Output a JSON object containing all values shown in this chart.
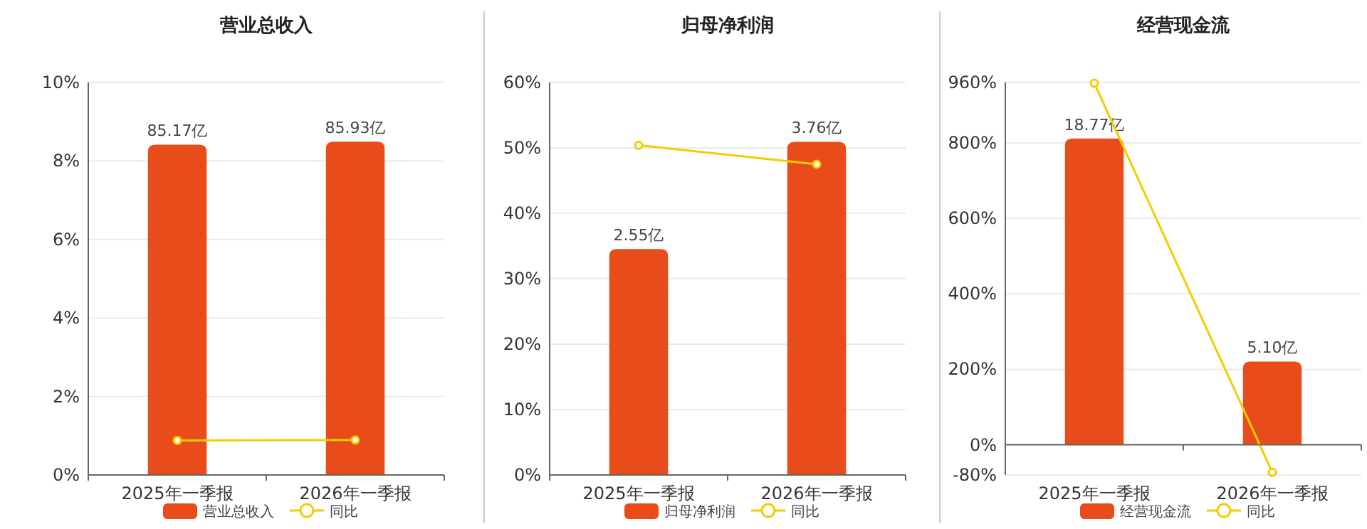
{
  "chart_data": [
    {
      "type": "bar",
      "title": "营业总收入",
      "categories": [
        "2025年一季报",
        "2026年一季报"
      ],
      "series": [
        {
          "name": "营业总收入",
          "axis": "y2",
          "color": "#e84c1a",
          "values": [
            85.17,
            85.93
          ],
          "value_labels": [
            "85.17亿",
            "85.93亿"
          ]
        },
        {
          "name": "同比",
          "type": "line",
          "color": "#f5cc00",
          "values": [
            0.88,
            0.89
          ]
        }
      ],
      "ylim": [
        0,
        10
      ],
      "yticks": [
        {
          "value": 0,
          "label": "0%"
        },
        {
          "value": 2,
          "label": "2%"
        },
        {
          "value": 4,
          "label": "4%"
        },
        {
          "value": 6,
          "label": "6%"
        },
        {
          "value": 8,
          "label": "8%"
        },
        {
          "value": 10,
          "label": "10%"
        }
      ],
      "y2lim": [
        0,
        101.2
      ],
      "tick_labels": "xy",
      "grid": "y",
      "legend": "bottom",
      "marker": "circle",
      "line_style": "solid"
    },
    {
      "type": "bar",
      "title": "归母净利润",
      "categories": [
        "2025年一季报",
        "2026年一季报"
      ],
      "series": [
        {
          "name": "归母净利润",
          "axis": "y2",
          "color": "#e84c1a",
          "values": [
            2.55,
            3.76
          ],
          "value_labels": [
            "2.55亿",
            "3.76亿"
          ]
        },
        {
          "name": "同比",
          "type": "line",
          "color": "#f5cc00",
          "values": [
            50.4,
            47.5
          ]
        }
      ],
      "ylim": [
        0,
        60
      ],
      "yticks": [
        {
          "value": 0,
          "label": "0%"
        },
        {
          "value": 10,
          "label": "10%"
        },
        {
          "value": 20,
          "label": "20%"
        },
        {
          "value": 30,
          "label": "30%"
        },
        {
          "value": 40,
          "label": "40%"
        },
        {
          "value": 50,
          "label": "50%"
        },
        {
          "value": 60,
          "label": "60%"
        }
      ],
      "y2lim": [
        0,
        4.43
      ],
      "tick_labels": "xy",
      "grid": "y",
      "legend": "bottom",
      "marker": "circle",
      "line_style": "solid"
    },
    {
      "type": "bar",
      "title": "经营现金流",
      "categories": [
        "2025年一季报",
        "2026年一季报"
      ],
      "series": [
        {
          "name": "经营现金流",
          "axis": "y2",
          "color": "#e84c1a",
          "values": [
            18.77,
            5.1
          ],
          "value_labels": [
            "18.77亿",
            "5.10亿"
          ]
        },
        {
          "name": "同比",
          "type": "line",
          "color": "#f5cc00",
          "values": [
            958,
            -73
          ]
        }
      ],
      "ylim": [
        -80,
        960
      ],
      "yticks": [
        {
          "value": -80,
          "label": "-80%"
        },
        {
          "value": 0,
          "label": "0%"
        },
        {
          "value": 200,
          "label": "200%"
        },
        {
          "value": 400,
          "label": "400%"
        },
        {
          "value": 600,
          "label": "600%"
        },
        {
          "value": 800,
          "label": "800%"
        },
        {
          "value": 960,
          "label": "960%"
        }
      ],
      "y2lim": [
        -1.85,
        22.2
      ],
      "tick_labels": "xy",
      "grid": "y",
      "legend": "bottom",
      "marker": "circle",
      "line_style": "solid"
    }
  ]
}
